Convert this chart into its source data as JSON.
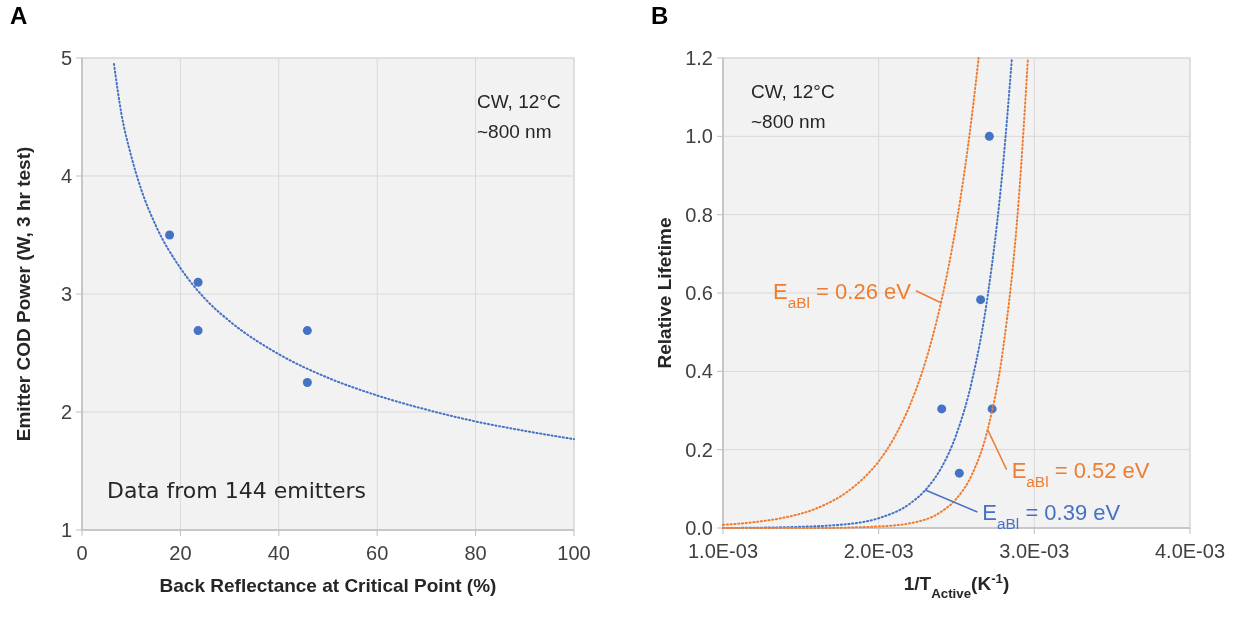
{
  "chart_data": [
    {
      "type": "scatter",
      "title": "A",
      "xlabel": "Back Reflectance at Critical Point (%)",
      "ylabel": "Emitter COD Power (W, 3 hr test)",
      "xlim": [
        0,
        100
      ],
      "xticks": [
        0,
        20,
        40,
        60,
        80,
        100
      ],
      "ylim": [
        1,
        5
      ],
      "yticks": [
        1,
        2,
        3,
        4,
        5
      ],
      "grid": true,
      "annotations": [
        "CW, 12°C",
        "~800 nm",
        "Data from 144 emitters"
      ],
      "series": [
        {
          "marker": "circle",
          "color": "#4472c4",
          "x": [
            17.8,
            23.6,
            23.6,
            45.8,
            45.8
          ],
          "values": [
            3.5,
            3.1,
            2.69,
            2.69,
            2.25
          ]
        },
        {
          "type": "line",
          "marker": "none",
          "line_style": "dotted",
          "color": "#4472c4",
          "x": [
            6.5,
            8,
            10,
            12,
            15,
            20,
            25,
            30,
            40,
            50,
            60,
            70,
            80,
            90,
            100
          ],
          "values": [
            4.95,
            4.53,
            4.17,
            3.89,
            3.58,
            3.22,
            2.96,
            2.77,
            2.49,
            2.29,
            2.14,
            2.02,
            1.92,
            1.84,
            1.77
          ]
        }
      ]
    },
    {
      "type": "scatter",
      "title": "B",
      "xlabel": "1/T$_{Active}$(K$^{-1}$)",
      "ylabel": "Relative Lifetime",
      "xlim": [
        0.001,
        0.004
      ],
      "xticks": [
        {
          "value": 0.001,
          "label": "1.0E-03"
        },
        {
          "value": 0.002,
          "label": "2.0E-03"
        },
        {
          "value": 0.003,
          "label": "3.0E-03"
        },
        {
          "value": 0.004,
          "label": "4.0E-03"
        }
      ],
      "ylim": [
        0,
        1.2
      ],
      "yticks": [
        {
          "value": 0,
          "label": "0.0"
        },
        0.2,
        0.4,
        0.6,
        0.8,
        {
          "value": 1,
          "label": "1.0"
        },
        1.2
      ],
      "grid": true,
      "annotations": [
        "CW, 12°C",
        "~800 nm"
      ],
      "series": [
        {
          "marker": "circle",
          "color": "#4472c4",
          "x": [
            0.002711,
            0.002655,
            0.002405,
            0.002729,
            0.002518
          ],
          "values": [
            1.0,
            0.583,
            0.304,
            0.304,
            0.14
          ]
        },
        {
          "type": "line",
          "marker": "none",
          "line_style": "dotted",
          "name": "E$_{aBl}$ = 0.26 eV",
          "color": "#ed7d31",
          "x": [
            0.001,
            0.0012,
            0.0014,
            0.0016,
            0.0018,
            0.0019,
            0.002,
            0.0021,
            0.0022,
            0.0023,
            0.0024,
            0.0025,
            0.0026,
            0.002642
          ],
          "values": [
            0.008,
            0.015,
            0.027,
            0.05,
            0.093,
            0.126,
            0.17,
            0.231,
            0.313,
            0.424,
            0.575,
            0.779,
            1.056,
            1.2
          ]
        },
        {
          "type": "line",
          "marker": "none",
          "line_style": "dotted",
          "name": "E$_{aBl}$ = 0.39 eV",
          "color": "#4472c4",
          "x": [
            0.001,
            0.0014,
            0.0018,
            0.002,
            0.0022,
            0.0023,
            0.0024,
            0.0025,
            0.0026,
            0.0027,
            0.0028,
            0.002856
          ],
          "values": [
            0,
            0.002,
            0.01,
            0.025,
            0.062,
            0.097,
            0.152,
            0.24,
            0.377,
            0.592,
            0.931,
            1.2
          ]
        },
        {
          "type": "line",
          "marker": "none",
          "line_style": "dotted",
          "name": "E$_{aBl}$ = 0.52 eV",
          "color": "#ed7d31",
          "x": [
            0.001,
            0.0016,
            0.002,
            0.0022,
            0.0024,
            0.0025,
            0.0026,
            0.0027,
            0.0028,
            0.0029,
            0.002959
          ],
          "values": [
            0,
            0,
            0.004,
            0.012,
            0.041,
            0.075,
            0.137,
            0.251,
            0.46,
            0.84,
            1.2
          ]
        }
      ]
    }
  ]
}
